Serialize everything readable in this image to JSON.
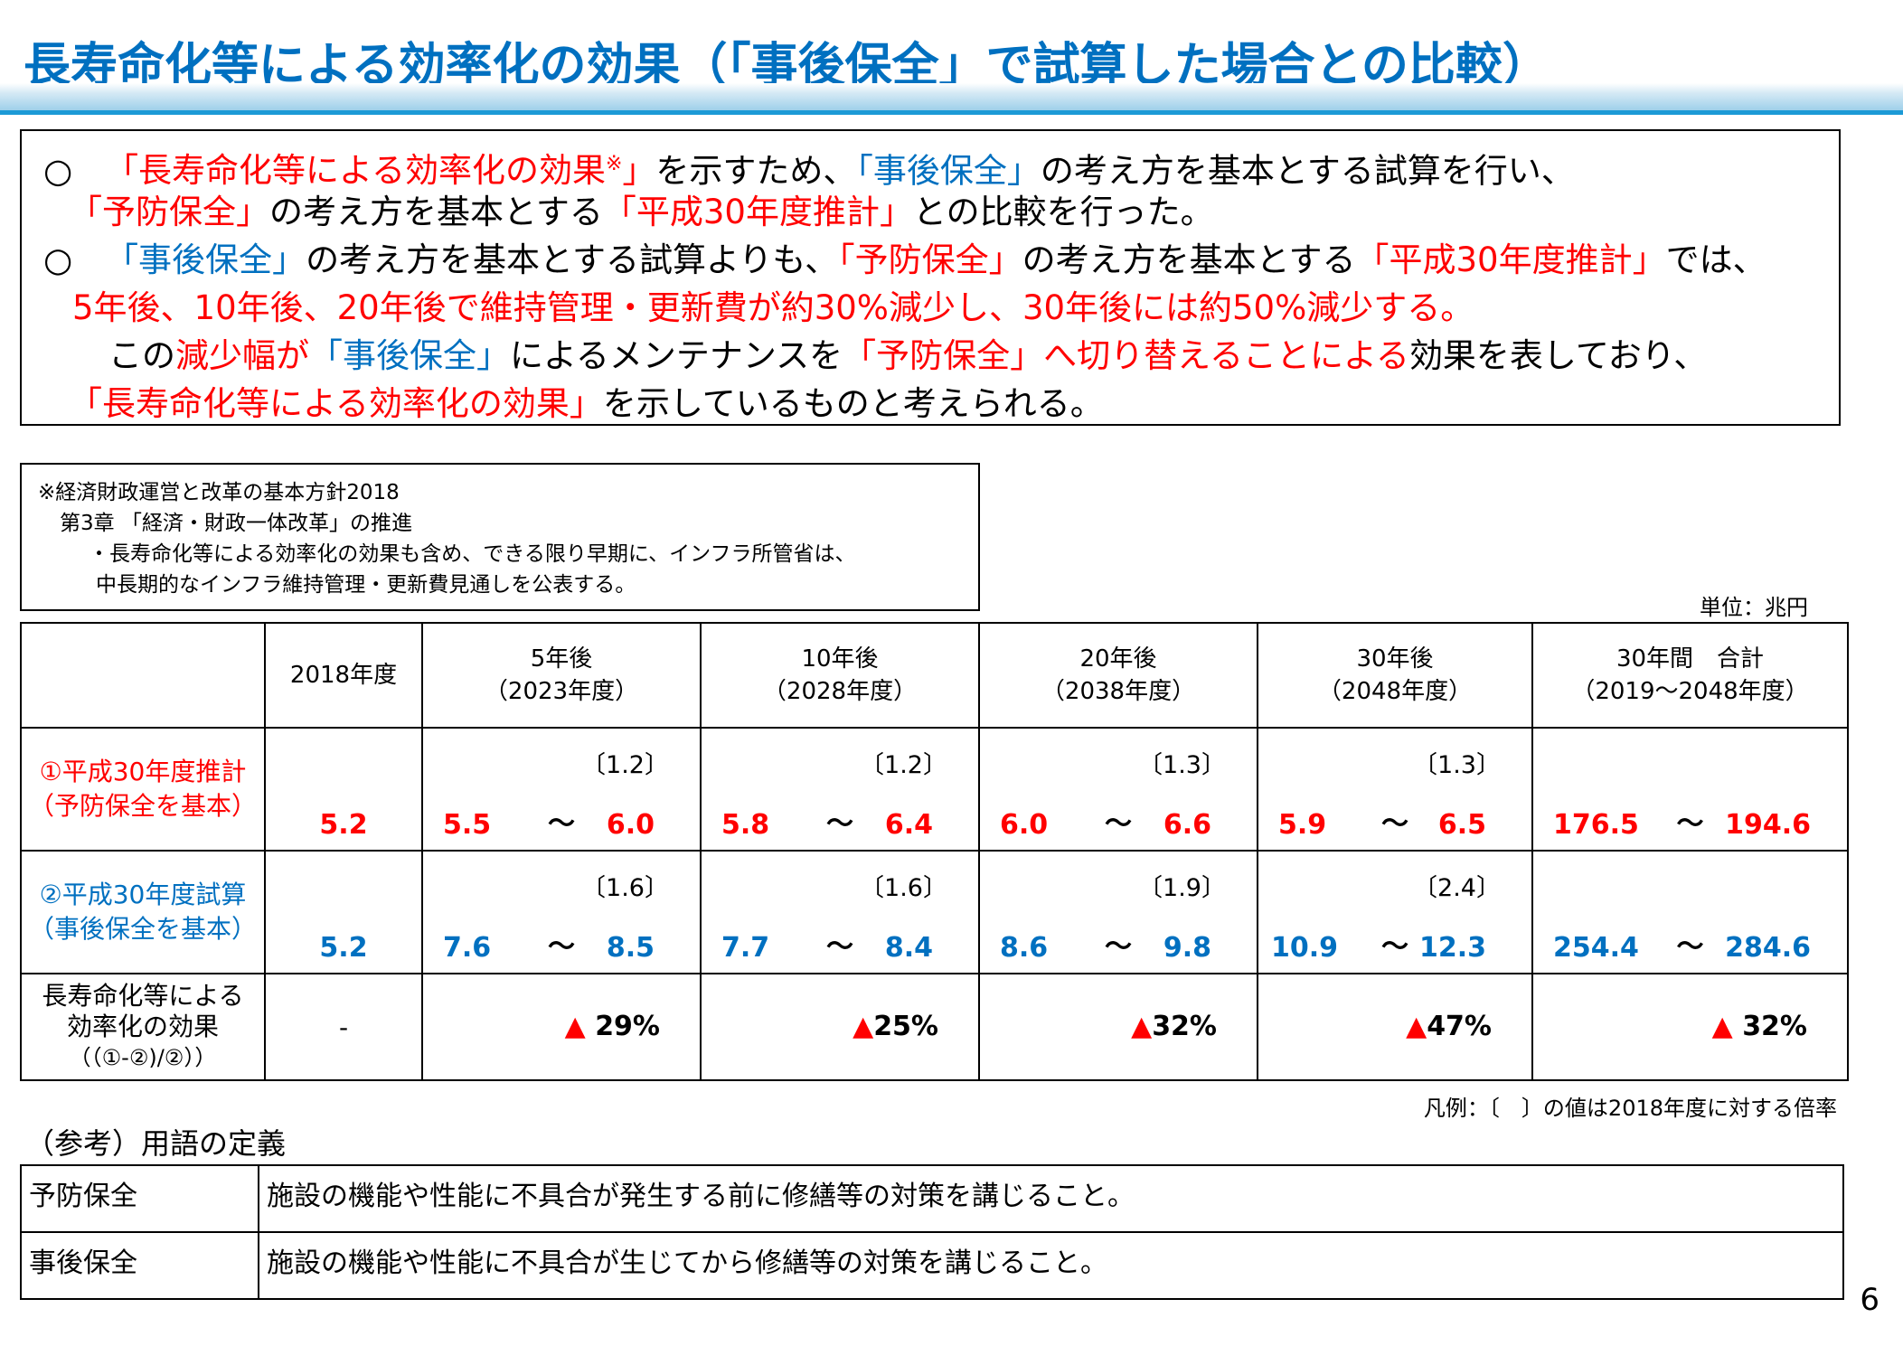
{
  "title": "長寿命化等による効率化の効果（「事後保全」で試算した場合との比較）",
  "summary": {
    "bullet": "○",
    "p1_a": "「長寿命化等による効率化の効果",
    "p1_mark": "※",
    "p1_b": "」",
    "p1_c": "を示すため、",
    "p1_d": "「事後保全」",
    "p1_e": "の考え方を基本とする試算を行い、",
    "p2_a": "「予防保全」",
    "p2_b": "の考え方を基本とする",
    "p2_c": "「平成30年度推計」",
    "p2_d": "との比較を行った。",
    "p3_a": "「事後保全」",
    "p3_b": "の考え方を基本とする試算よりも、",
    "p3_c": "「予防保全」",
    "p3_d": "の考え方を基本とする",
    "p3_e": "「平成30年度推計」",
    "p3_f": "では、",
    "p4": "5年後、10年後、20年後で維持管理・更新費が約30%減少し、30年後には約50%減少する。",
    "p5_a": "この",
    "p5_b": "減少幅が",
    "p5_c": "「事後保全」",
    "p5_d": "によるメンテナンスを",
    "p5_e": "「予防保全」へ切り替えることによる",
    "p5_f": "効果を表しており、",
    "p6_a": "「長寿命化等による効率化の効果」",
    "p6_b": "を示しているものと考えられる。"
  },
  "note": {
    "line1": "※経済財政運営と改革の基本方針2018",
    "line2": "第3章 「経済・財政一体改革」の推進",
    "line3": "・長寿命化等による効率化の効果も含め、できる限り早期に、インフラ所管省は、",
    "line4": "中長期的なインフラ維持管理・更新費見通しを公表する。"
  },
  "unit": "単位：兆円",
  "table": {
    "headers": [
      {
        "l1": "",
        "l2": ""
      },
      {
        "l1": "2018年度",
        "l2": ""
      },
      {
        "l1": "5年後",
        "l2": "（2023年度）"
      },
      {
        "l1": "10年後",
        "l2": "（2028年度）"
      },
      {
        "l1": "20年後",
        "l2": "（2038年度）"
      },
      {
        "l1": "30年後",
        "l2": "（2048年度）"
      },
      {
        "l1": "30年間　合計",
        "l2": "（2019～2048年度）"
      }
    ],
    "row1": {
      "label1": "①平成30年度推計",
      "label2": "（予防保全を基本）",
      "base": "5.2",
      "cols": [
        {
          "ratio": "〔1.2〕",
          "lo": "5.5",
          "hi": "6.0"
        },
        {
          "ratio": "〔1.2〕",
          "lo": "5.8",
          "hi": "6.4"
        },
        {
          "ratio": "〔1.3〕",
          "lo": "6.0",
          "hi": "6.6"
        },
        {
          "ratio": "〔1.3〕",
          "lo": "5.9",
          "hi": "6.5"
        }
      ],
      "total": {
        "lo": "176.5",
        "hi": "194.6"
      }
    },
    "row2": {
      "label1": "②平成30年度試算",
      "label2": "（事後保全を基本）",
      "base": "5.2",
      "cols": [
        {
          "ratio": "〔1.6〕",
          "lo": "7.6",
          "hi": "8.5"
        },
        {
          "ratio": "〔1.6〕",
          "lo": "7.7",
          "hi": "8.4"
        },
        {
          "ratio": "〔1.9〕",
          "lo": "8.6",
          "hi": "9.8"
        },
        {
          "ratio": "〔2.4〕",
          "lo": "10.9",
          "hi": "12.3"
        }
      ],
      "total": {
        "lo": "254.4",
        "hi": "284.6"
      }
    },
    "tilde": "～",
    "row3": {
      "label1": "長寿命化等による",
      "label2": "効率化の効果",
      "label3": "（（①-②)/②））",
      "base": "-",
      "triangle": "▲",
      "values": [
        "29%",
        "25%",
        "32%",
        "47%",
        "32%"
      ]
    }
  },
  "legend": "凡例：〔　〕の値は2018年度に対する倍率",
  "reference": {
    "title": "（参考）用語の定義",
    "rows": [
      {
        "term": "予防保全",
        "def": "施設の機能や性能に不具合が発生する前に修繕等の対策を講じること。"
      },
      {
        "term": "事後保全",
        "def": "施設の機能や性能に不具合が生じてから修繕等の対策を講じること。"
      }
    ]
  },
  "page_number": "6",
  "colors": {
    "title_blue": "#0070c0",
    "emphasis_red": "#ff0000",
    "rule_blue": "#1c9ad6"
  }
}
